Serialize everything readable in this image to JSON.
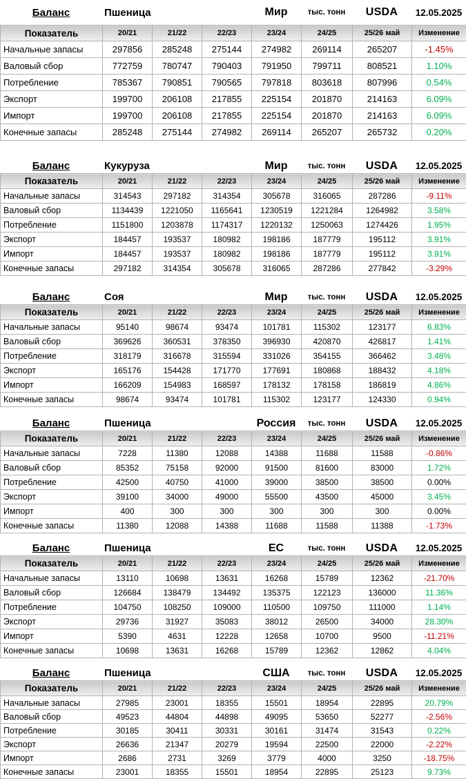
{
  "colors": {
    "positive": "#00B050",
    "negative": "#C00000",
    "neutral": "#000000",
    "grid_border": "#b2b2b2",
    "header_fill_top": "#c9c9c9",
    "header_fill_bottom": "#efefef"
  },
  "columns": [
    "Показатель",
    "20/21",
    "21/22",
    "22/23",
    "23/24",
    "24/25",
    "25/26 май",
    "Изменение"
  ],
  "tables": [
    {
      "title": {
        "label": "Баланс",
        "commodity": "Пшеница",
        "region": "Мир",
        "units": "тыс. тонн",
        "source": "USDA",
        "date": "12.05.2025"
      },
      "rows": [
        {
          "name": "Начальные запасы",
          "values": [
            "297856",
            "285248",
            "275144",
            "274982",
            "269114",
            "265207"
          ],
          "change": "-1.45%",
          "trend": "neg"
        },
        {
          "name": "Валовый сбор",
          "values": [
            "772759",
            "780747",
            "790403",
            "791950",
            "799711",
            "808521"
          ],
          "change": "1.10%",
          "trend": "pos"
        },
        {
          "name": "Потребление",
          "values": [
            "785367",
            "790851",
            "790565",
            "797818",
            "803618",
            "807996"
          ],
          "change": "0.54%",
          "trend": "pos"
        },
        {
          "name": "Экспорт",
          "values": [
            "199700",
            "206108",
            "217855",
            "225154",
            "201870",
            "214163"
          ],
          "change": "6.09%",
          "trend": "pos"
        },
        {
          "name": "Импорт",
          "values": [
            "199700",
            "206108",
            "217855",
            "225154",
            "201870",
            "214163"
          ],
          "change": "6.09%",
          "trend": "pos"
        },
        {
          "name": "Конечные запасы",
          "values": [
            "285248",
            "275144",
            "274982",
            "269114",
            "265207",
            "265732"
          ],
          "change": "0.20%",
          "trend": "pos"
        }
      ]
    },
    {
      "title": {
        "label": "Баланс",
        "commodity": "Кукуруза",
        "region": "Мир",
        "units": "тыс. тонн",
        "source": "USDA",
        "date": "12.05.2025"
      },
      "rows": [
        {
          "name": "Начальные запасы",
          "values": [
            "314543",
            "297182",
            "314354",
            "305678",
            "316065",
            "287286"
          ],
          "change": "-9.11%",
          "trend": "neg"
        },
        {
          "name": "Валовый сбор",
          "values": [
            "1134439",
            "1221050",
            "1165641",
            "1230519",
            "1221284",
            "1264982"
          ],
          "change": "3.58%",
          "trend": "pos"
        },
        {
          "name": "Потребление",
          "values": [
            "1151800",
            "1203878",
            "1174317",
            "1220132",
            "1250063",
            "1274426"
          ],
          "change": "1.95%",
          "trend": "pos"
        },
        {
          "name": "Экспорт",
          "values": [
            "184457",
            "193537",
            "180982",
            "198186",
            "187779",
            "195112"
          ],
          "change": "3.91%",
          "trend": "pos"
        },
        {
          "name": "Импорт",
          "values": [
            "184457",
            "193537",
            "180982",
            "198186",
            "187779",
            "195112"
          ],
          "change": "3.91%",
          "trend": "pos"
        },
        {
          "name": "Конечные запасы",
          "values": [
            "297182",
            "314354",
            "305678",
            "316065",
            "287286",
            "277842"
          ],
          "change": "-3.29%",
          "trend": "neg"
        }
      ]
    },
    {
      "title": {
        "label": "Баланс",
        "commodity": "Соя",
        "region": "Мир",
        "units": "тыс. тонн",
        "source": "USDA",
        "date": "12.05.2025"
      },
      "rows": [
        {
          "name": "Начальные запасы",
          "values": [
            "95140",
            "98674",
            "93474",
            "101781",
            "115302",
            "123177"
          ],
          "change": "6.83%",
          "trend": "pos"
        },
        {
          "name": "Валовый сбор",
          "values": [
            "369626",
            "360531",
            "378350",
            "396930",
            "420870",
            "426817"
          ],
          "change": "1.41%",
          "trend": "pos"
        },
        {
          "name": "Потребление",
          "values": [
            "318179",
            "316678",
            "315594",
            "331026",
            "354155",
            "366462"
          ],
          "change": "3.48%",
          "trend": "pos"
        },
        {
          "name": "Экспорт",
          "values": [
            "165176",
            "154428",
            "171770",
            "177691",
            "180868",
            "188432"
          ],
          "change": "4.18%",
          "trend": "pos"
        },
        {
          "name": "Импорт",
          "values": [
            "166209",
            "154983",
            "168597",
            "178132",
            "178158",
            "186819"
          ],
          "change": "4.86%",
          "trend": "pos"
        },
        {
          "name": "Конечные запасы",
          "values": [
            "98674",
            "93474",
            "101781",
            "115302",
            "123177",
            "124330"
          ],
          "change": "0.94%",
          "trend": "pos"
        }
      ]
    },
    {
      "title": {
        "label": "Баланс",
        "commodity": "Пшеница",
        "region": "Россия",
        "units": "тыс. тонн",
        "source": "USDA",
        "date": "12.05.2025"
      },
      "rows": [
        {
          "name": "Начальные запасы",
          "values": [
            "7228",
            "11380",
            "12088",
            "14388",
            "11688",
            "11588"
          ],
          "change": "-0.86%",
          "trend": "neg"
        },
        {
          "name": "Валовый сбор",
          "values": [
            "85352",
            "75158",
            "92000",
            "91500",
            "81600",
            "83000"
          ],
          "change": "1.72%",
          "trend": "pos"
        },
        {
          "name": "Потребление",
          "values": [
            "42500",
            "40750",
            "41000",
            "39000",
            "38500",
            "38500"
          ],
          "change": "0.00%",
          "trend": "zero"
        },
        {
          "name": "Экспорт",
          "values": [
            "39100",
            "34000",
            "49000",
            "55500",
            "43500",
            "45000"
          ],
          "change": "3.45%",
          "trend": "pos"
        },
        {
          "name": "Импорт",
          "values": [
            "400",
            "300",
            "300",
            "300",
            "300",
            "300"
          ],
          "change": "0.00%",
          "trend": "zero"
        },
        {
          "name": "Конечные запасы",
          "values": [
            "11380",
            "12088",
            "14388",
            "11688",
            "11588",
            "11388"
          ],
          "change": "-1.73%",
          "trend": "neg"
        }
      ]
    },
    {
      "title": {
        "label": "Баланс",
        "commodity": "Пшеница",
        "region": "ЕС",
        "units": "тыс. тонн",
        "source": "USDA",
        "date": "12.05.2025"
      },
      "rows": [
        {
          "name": "Начальные запасы",
          "values": [
            "13110",
            "10698",
            "13631",
            "16268",
            "15789",
            "12362"
          ],
          "change": "-21.70%",
          "trend": "neg"
        },
        {
          "name": "Валовый сбор",
          "values": [
            "126684",
            "138479",
            "134492",
            "135375",
            "122123",
            "136000"
          ],
          "change": "11.36%",
          "trend": "pos"
        },
        {
          "name": "Потребление",
          "values": [
            "104750",
            "108250",
            "109000",
            "110500",
            "109750",
            "111000"
          ],
          "change": "1.14%",
          "trend": "pos"
        },
        {
          "name": "Экспорт",
          "values": [
            "29736",
            "31927",
            "35083",
            "38012",
            "26500",
            "34000"
          ],
          "change": "28.30%",
          "trend": "pos"
        },
        {
          "name": "Импорт",
          "values": [
            "5390",
            "4631",
            "12228",
            "12658",
            "10700",
            "9500"
          ],
          "change": "-11.21%",
          "trend": "neg"
        },
        {
          "name": "Конечные запасы",
          "values": [
            "10698",
            "13631",
            "16268",
            "15789",
            "12362",
            "12862"
          ],
          "change": "4.04%",
          "trend": "pos"
        }
      ]
    },
    {
      "title": {
        "label": "Баланс",
        "commodity": "Пшеница",
        "region": "США",
        "units": "тыс. тонн",
        "source": "USDA",
        "date": "12.05.2025"
      },
      "rows": [
        {
          "name": "Начальные запасы",
          "values": [
            "27985",
            "23001",
            "18355",
            "15501",
            "18954",
            "22895"
          ],
          "change": "20.79%",
          "trend": "pos"
        },
        {
          "name": "Валовый сбор",
          "values": [
            "49523",
            "44804",
            "44898",
            "49095",
            "53650",
            "52277"
          ],
          "change": "-2.56%",
          "trend": "neg"
        },
        {
          "name": "Потребление",
          "values": [
            "30185",
            "30411",
            "30331",
            "30161",
            "31474",
            "31543"
          ],
          "change": "0.22%",
          "trend": "pos"
        },
        {
          "name": "Экспорт",
          "values": [
            "26636",
            "21347",
            "20279",
            "19594",
            "22500",
            "22000"
          ],
          "change": "-2.22%",
          "trend": "neg"
        },
        {
          "name": "Импорт",
          "values": [
            "2686",
            "2731",
            "3269",
            "3779",
            "4000",
            "3250"
          ],
          "change": "-18.75%",
          "trend": "neg"
        },
        {
          "name": "Конечные запасы",
          "values": [
            "23001",
            "18355",
            "15501",
            "18954",
            "22895",
            "25123"
          ],
          "change": "9.73%",
          "trend": "pos"
        }
      ]
    }
  ]
}
